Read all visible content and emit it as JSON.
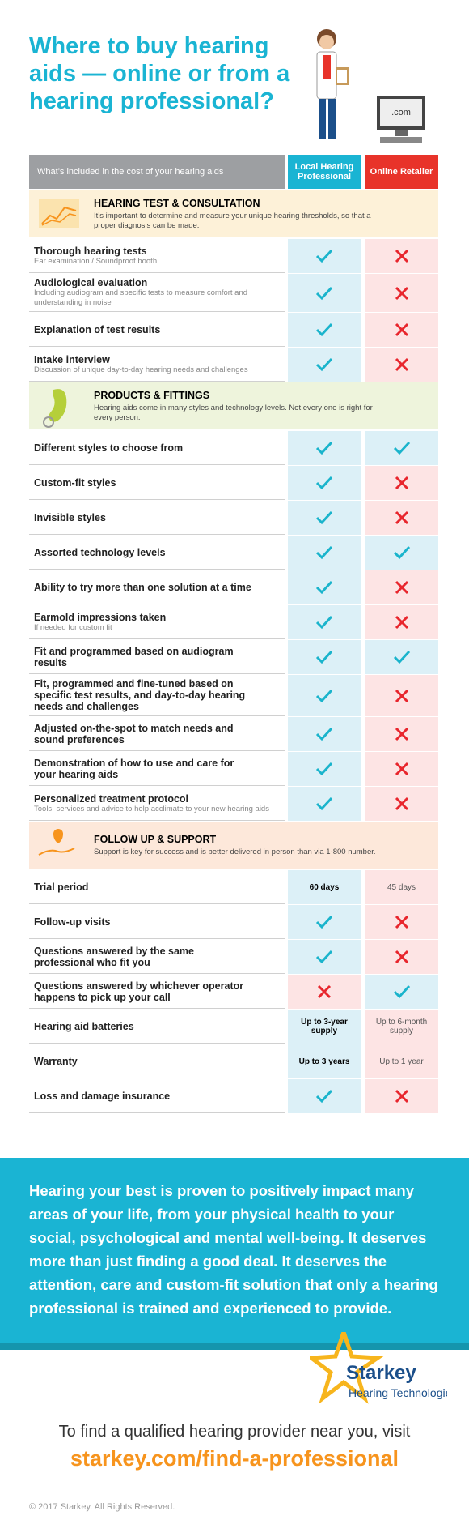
{
  "header": {
    "title": "Where to buy hearing aids — online or from a hearing professional?",
    "screen_label": ".com"
  },
  "table": {
    "columns": [
      "What’s included in the cost of your hearing aids",
      "Local Hearing Professional",
      "Online Retailer"
    ],
    "sections": [
      {
        "title": "HEARING TEST & CONSULTATION",
        "description": "It’s important to determine and measure your unique hearing thresholds, so that a proper diagnosis can be made.",
        "color": "#fdf1d8",
        "rows": [
          {
            "label": "Thorough hearing tests",
            "note": "Ear examination / Soundproof booth",
            "local": true,
            "online": false
          },
          {
            "label": "Audiological evaluation",
            "note": "Including audiogram and specific tests to measure comfort and understanding in noise",
            "local": true,
            "online": false
          },
          {
            "label": "Explanation of test results",
            "local": true,
            "online": false
          },
          {
            "label": "Intake interview",
            "note": "Discussion of unique day-to-day hearing needs and challenges",
            "local": true,
            "online": false
          }
        ]
      },
      {
        "title": "PRODUCTS & FITTINGS",
        "description": "Hearing aids come in many styles and technology levels. Not every one is right for every person.",
        "color": "#eef4dc",
        "rows": [
          {
            "label": "Different styles to choose from",
            "local": true,
            "online": true
          },
          {
            "label": "Custom-fit styles",
            "local": true,
            "online": false
          },
          {
            "label": "Invisible styles",
            "local": true,
            "online": false
          },
          {
            "label": "Assorted technology levels",
            "local": true,
            "online": true
          },
          {
            "label": "Ability to try more than one solution at a time",
            "local": true,
            "online": false
          },
          {
            "label": "Earmold impressions taken",
            "note": "If needed for custom fit",
            "local": true,
            "online": false
          },
          {
            "label": "Fit and programmed based on audiogram results",
            "local": true,
            "online": true
          },
          {
            "label": "Fit, programmed and fine-tuned based on specific test results, and day-to-day hearing needs and challenges",
            "local": true,
            "online": false
          },
          {
            "label": "Adjusted on-the-spot to match needs and sound preferences",
            "local": true,
            "online": false
          },
          {
            "label": "Demonstration of how to use and care for your hearing aids",
            "local": true,
            "online": false
          },
          {
            "label": "Personalized treatment protocol",
            "note": "Tools, services and advice to help acclimate to your new hearing aids",
            "local": true,
            "online": false
          }
        ]
      },
      {
        "title": "FOLLOW UP & SUPPORT",
        "description": "Support is key for success and is better delivered in person than via 1-800 number.",
        "color": "#fde8da",
        "rows": [
          {
            "label": "Trial period",
            "local": "60 days",
            "online": "45 days"
          },
          {
            "label": "Follow-up visits",
            "local": true,
            "online": false
          },
          {
            "label": "Questions answered by the same professional who fit you",
            "local": true,
            "online": false
          },
          {
            "label": "Questions answered by whichever operator happens to pick up your call",
            "local": false,
            "online": true
          },
          {
            "label": "Hearing aid batteries",
            "local": "Up to 3-year supply",
            "online": "Up to 6-month supply"
          },
          {
            "label": "Warranty",
            "local": "Up to 3 years",
            "online": "Up to 1 year"
          },
          {
            "label": "Loss and damage insurance",
            "local": true,
            "online": false
          }
        ]
      }
    ]
  },
  "footer": {
    "message": "Hearing your best is proven to positively impact many areas of your life, from your physical health to your social, psychological and mental well-being. It deserves more than just finding a good deal. It deserves the attention, care and custom-fit solution that only a hearing professional is trained and experienced to provide.",
    "logo_name": "Starkey",
    "logo_tagline": "Hearing Technologies",
    "cta": "To find a qualified hearing provider near you, visit",
    "url": "starkey.com/find-a-professional",
    "copyright": "© 2017 Starkey. All Rights Reserved."
  }
}
